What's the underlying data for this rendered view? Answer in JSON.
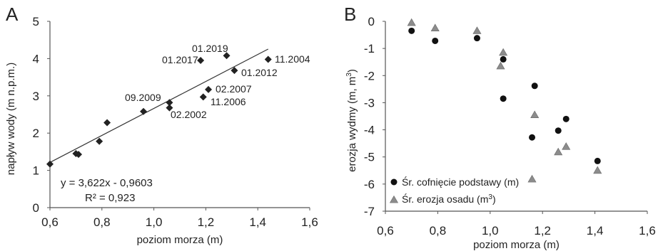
{
  "chart_data": [
    {
      "type": "scatter",
      "panel_label": "A",
      "xlabel": "poziom morza (m)",
      "ylabel": "napływ wody (m n.p.m.)",
      "xlim": [
        0.6,
        1.6
      ],
      "ylim": [
        0,
        5
      ],
      "x_ticks": [
        "0,6",
        "0,8",
        "1,0",
        "1,2",
        "1,4",
        "1,6"
      ],
      "y_ticks": [
        "0",
        "1",
        "2",
        "3",
        "4",
        "5"
      ],
      "grid": false,
      "series": [
        {
          "marker": "diamond",
          "color": "#222222",
          "points": [
            {
              "x": 0.6,
              "y": 1.17
            },
            {
              "x": 0.7,
              "y": 1.45
            },
            {
              "x": 0.71,
              "y": 1.43
            },
            {
              "x": 0.79,
              "y": 1.78
            },
            {
              "x": 0.82,
              "y": 2.28
            },
            {
              "x": 0.96,
              "y": 2.58
            },
            {
              "x": 1.06,
              "y": 2.82
            },
            {
              "x": 1.06,
              "y": 2.68
            },
            {
              "x": 1.18,
              "y": 3.95
            },
            {
              "x": 1.19,
              "y": 2.97
            },
            {
              "x": 1.21,
              "y": 3.17
            },
            {
              "x": 1.28,
              "y": 4.08
            },
            {
              "x": 1.31,
              "y": 3.68
            },
            {
              "x": 1.44,
              "y": 3.98
            }
          ]
        }
      ],
      "trendline": {
        "slope": 3.622,
        "intercept": -0.9603,
        "x_from": 0.6,
        "x_to": 1.44
      },
      "equation": "y = 3,622x - 0,9603",
      "r_squared": "R² = 0,923",
      "annotations": [
        "01.2019",
        "01.2017",
        "11.2004",
        "01.2012",
        "09.2009",
        "02.2007",
        "11.2006",
        "02.2002"
      ]
    },
    {
      "type": "scatter",
      "panel_label": "B",
      "xlabel": "poziom morza (m)",
      "ylabel": "erozja wydmy (m, m",
      "ylabel_sup": "3",
      "ylabel_end": ")",
      "xlim": [
        0.6,
        1.6
      ],
      "ylim": [
        -7,
        0
      ],
      "x_ticks": [
        "0,6",
        "0,8",
        "1,0",
        "1,2",
        "1,4",
        "1,6"
      ],
      "y_ticks": [
        "0",
        "-1",
        "-2",
        "-3",
        "-4",
        "-5",
        "-6",
        "-7"
      ],
      "grid": false,
      "series": [
        {
          "name": "Śr. cofnięcie podstawy (m)",
          "marker": "circle",
          "color": "#111111",
          "points": [
            {
              "x": 0.7,
              "y": -0.35
            },
            {
              "x": 0.79,
              "y": -0.72
            },
            {
              "x": 0.95,
              "y": -0.62
            },
            {
              "x": 1.05,
              "y": -1.4
            },
            {
              "x": 1.05,
              "y": -2.85
            },
            {
              "x": 1.16,
              "y": -4.28
            },
            {
              "x": 1.17,
              "y": -2.38
            },
            {
              "x": 1.26,
              "y": -4.03
            },
            {
              "x": 1.29,
              "y": -3.6
            },
            {
              "x": 1.41,
              "y": -5.15
            }
          ]
        },
        {
          "name": "Śr. erozja osadu (m",
          "name_sup": "3",
          "name_end": ")",
          "marker": "triangle",
          "color": "#8c8c8c",
          "points": [
            {
              "x": 0.7,
              "y": -0.05
            },
            {
              "x": 0.79,
              "y": -0.25
            },
            {
              "x": 0.95,
              "y": -0.35
            },
            {
              "x": 1.04,
              "y": -1.65
            },
            {
              "x": 1.05,
              "y": -1.15
            },
            {
              "x": 1.16,
              "y": -5.82
            },
            {
              "x": 1.17,
              "y": -3.45
            },
            {
              "x": 1.26,
              "y": -4.82
            },
            {
              "x": 1.29,
              "y": -4.62
            },
            {
              "x": 1.41,
              "y": -5.5
            }
          ]
        }
      ]
    }
  ]
}
